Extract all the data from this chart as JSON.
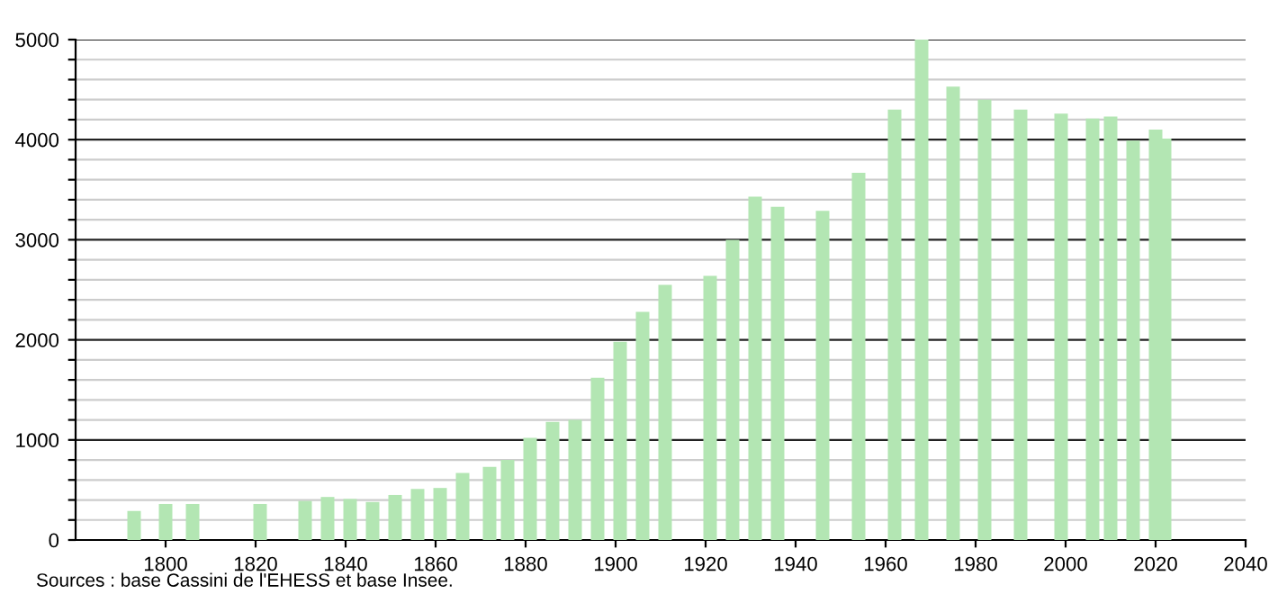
{
  "chart_data": {
    "type": "bar",
    "x": [
      1793,
      1800,
      1806,
      1821,
      1831,
      1836,
      1841,
      1846,
      1851,
      1856,
      1861,
      1866,
      1872,
      1876,
      1881,
      1886,
      1891,
      1896,
      1901,
      1906,
      1911,
      1921,
      1926,
      1931,
      1936,
      1946,
      1954,
      1962,
      1968,
      1975,
      1982,
      1990,
      1999,
      2006,
      2010,
      2015,
      2020,
      2022
    ],
    "values": [
      290,
      360,
      360,
      360,
      390,
      430,
      410,
      380,
      450,
      510,
      520,
      670,
      730,
      800,
      1020,
      1180,
      1200,
      1620,
      1980,
      2280,
      2550,
      2640,
      3000,
      3430,
      3330,
      3290,
      3670,
      4300,
      5000,
      4530,
      4400,
      4300,
      4260,
      4210,
      4230,
      3990,
      4100,
      4010
    ],
    "color": "#b3e6b3",
    "xlim": [
      1780,
      2040
    ],
    "xticks": [
      1800,
      1820,
      1840,
      1860,
      1880,
      1900,
      1920,
      1940,
      1960,
      1980,
      2000,
      2020,
      2040
    ],
    "ylim": [
      0,
      5000
    ],
    "yticks": [
      0,
      {
        "value": 200,
        "label": null
      },
      {
        "value": 400,
        "label": null
      },
      {
        "value": 600,
        "label": null
      },
      {
        "value": 800,
        "label": null
      },
      1000,
      {
        "value": 1200,
        "label": null
      },
      {
        "value": 1400,
        "label": null
      },
      {
        "value": 1600,
        "label": null
      },
      {
        "value": 1800,
        "label": null
      },
      2000,
      {
        "value": 2200,
        "label": null
      },
      {
        "value": 2400,
        "label": null
      },
      {
        "value": 2600,
        "label": null
      },
      {
        "value": 2800,
        "label": null
      },
      3000,
      {
        "value": 3200,
        "label": null
      },
      {
        "value": 3400,
        "label": null
      },
      {
        "value": 3600,
        "label": null
      },
      {
        "value": 3800,
        "label": null
      },
      4000,
      {
        "value": 4200,
        "label": null
      },
      {
        "value": 4400,
        "label": null
      },
      {
        "value": 4600,
        "label": null
      },
      {
        "value": 4800,
        "label": null
      },
      5000
    ],
    "grid": "y",
    "annotations": [
      "Sources : base Cassini de l'EHESS et base Insee."
    ]
  }
}
